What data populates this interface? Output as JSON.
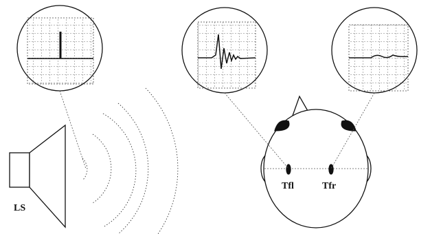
{
  "labels": {
    "speaker": "LS",
    "left_electrode": "Tfl",
    "right_electrode": "Tfr"
  }
}
